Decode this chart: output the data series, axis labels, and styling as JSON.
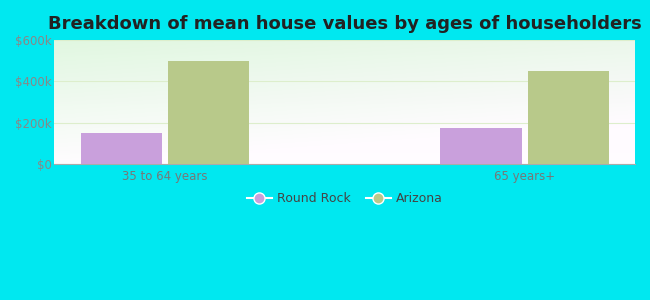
{
  "title": "Breakdown of mean house values by ages of householders",
  "categories": [
    "35 to 64 years",
    "65 years+"
  ],
  "series": {
    "Round Rock": [
      150000,
      175000
    ],
    "Arizona": [
      500000,
      450000
    ]
  },
  "colors": {
    "Round Rock": "#c9a0dc",
    "Arizona": "#b8c98a"
  },
  "ylim": [
    0,
    600000
  ],
  "yticks": [
    0,
    200000,
    400000,
    600000
  ],
  "ytick_labels": [
    "$0",
    "$200k",
    "$400k",
    "$600k"
  ],
  "background_color": "#00e8f0",
  "bar_width": 0.28,
  "legend_labels": [
    "Round Rock",
    "Arizona"
  ],
  "title_fontsize": 13,
  "tick_fontsize": 8.5,
  "legend_fontsize": 9,
  "grid_color": "#ddeecc",
  "x_positions": [
    0.38,
    1.62
  ]
}
